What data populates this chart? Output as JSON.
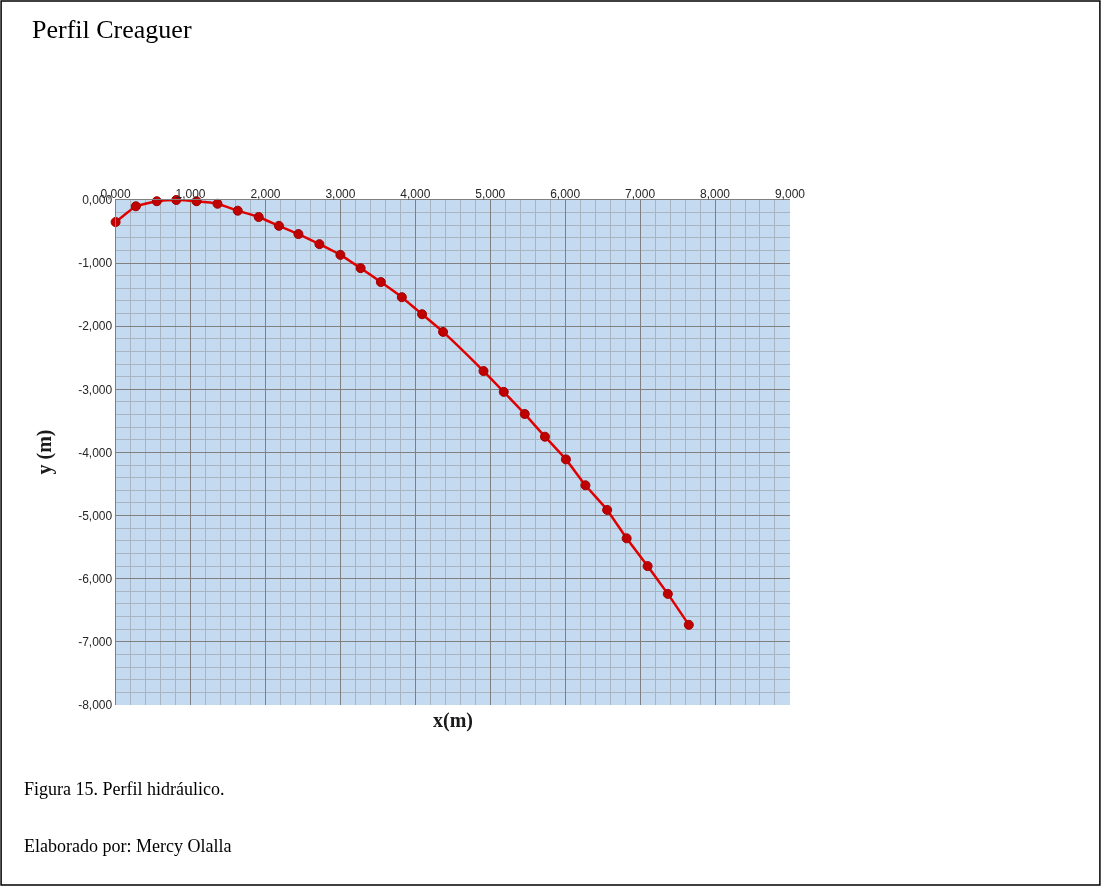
{
  "chart_data": {
    "type": "line",
    "title": "Perfil Creaguer",
    "xlabel": "x(m)",
    "ylabel": "y (m)",
    "annotations": [
      "Figura 15. Perfil hidráulico.",
      "Elaborado por: Mercy Olalla"
    ],
    "x": [
      0,
      0.27,
      0.55,
      0.81,
      1.08,
      1.36,
      1.63,
      1.91,
      2.18,
      2.44,
      2.72,
      3.0,
      3.27,
      3.54,
      3.82,
      4.09,
      4.37,
      4.91,
      5.18,
      5.46,
      5.73,
      6.01,
      6.27,
      6.56,
      6.82,
      7.1,
      7.37,
      7.65
    ],
    "series": [
      {
        "color": "#e00000",
        "values": [
          -0.35,
          -0.1,
          -0.02,
          0,
          -0.02,
          -0.06,
          -0.17,
          -0.27,
          -0.41,
          -0.54,
          -0.7,
          -0.87,
          -1.08,
          -1.3,
          -1.54,
          -1.81,
          -2.09,
          -2.71,
          -3.04,
          -3.39,
          -3.75,
          -4.11,
          -4.52,
          -4.91,
          -5.36,
          -5.8,
          -6.24,
          -6.73
        ]
      }
    ],
    "xlim": [
      0,
      9
    ],
    "ylim": [
      -8,
      0
    ],
    "xticks": [
      {
        "value": 0,
        "label": "0,000"
      },
      {
        "value": 1,
        "label": "1,000"
      },
      {
        "value": 2,
        "label": "2,000"
      },
      {
        "value": 3,
        "label": "3,000"
      },
      {
        "value": 4,
        "label": "4,000"
      },
      {
        "value": 5,
        "label": "5,000"
      },
      {
        "value": 6,
        "label": "6,000"
      },
      {
        "value": 7,
        "label": "7,000"
      },
      {
        "value": 8,
        "label": "8,000"
      },
      {
        "value": 9,
        "label": "9,000"
      }
    ],
    "yticks": [
      {
        "value": 0,
        "label": "0,000"
      },
      {
        "value": -1,
        "label": "-1,000"
      },
      {
        "value": -2,
        "label": "-2,000"
      },
      {
        "value": -3,
        "label": "-3,000"
      },
      {
        "value": -4,
        "label": "-4,000"
      },
      {
        "value": -5,
        "label": "-5,000"
      },
      {
        "value": -6,
        "label": "-6,000"
      },
      {
        "value": -7,
        "label": "-7,000"
      },
      {
        "value": -8,
        "label": "-8,000"
      }
    ],
    "grid": true,
    "marker": "circle",
    "line_style": "solid"
  }
}
